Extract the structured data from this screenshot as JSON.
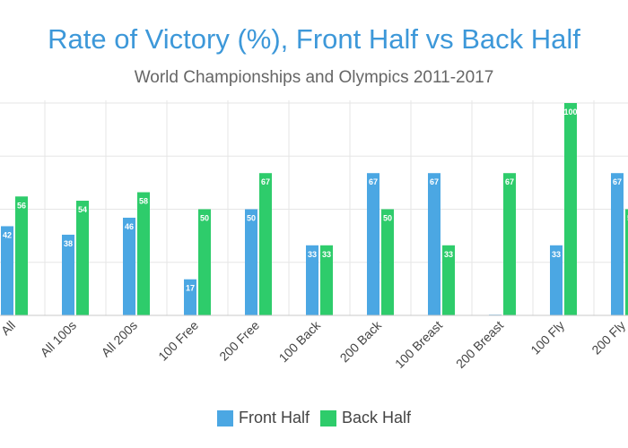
{
  "chart_data": {
    "type": "bar",
    "title": "Rate of Victory (%), Front Half vs Back Half",
    "subtitle": "World Championships and Olympics 2011-2017",
    "categories": [
      "All",
      "All 100s",
      "All 200s",
      "100 Free",
      "200 Free",
      "100 Back",
      "200 Back",
      "100 Breast",
      "200 Breast",
      "100 Fly",
      "200 Fly"
    ],
    "series": [
      {
        "name": "Front Half",
        "color": "#4ba7e3",
        "values": [
          42,
          38,
          46,
          17,
          50,
          33,
          67,
          67,
          0,
          33,
          67
        ]
      },
      {
        "name": "Back Half",
        "color": "#2ecc6b",
        "values": [
          56,
          54,
          58,
          50,
          67,
          33,
          50,
          33,
          67,
          100,
          50
        ]
      }
    ],
    "ylim": [
      0,
      100
    ],
    "grid": true,
    "legend": "bottom-center",
    "xlabel": "",
    "ylabel": ""
  }
}
